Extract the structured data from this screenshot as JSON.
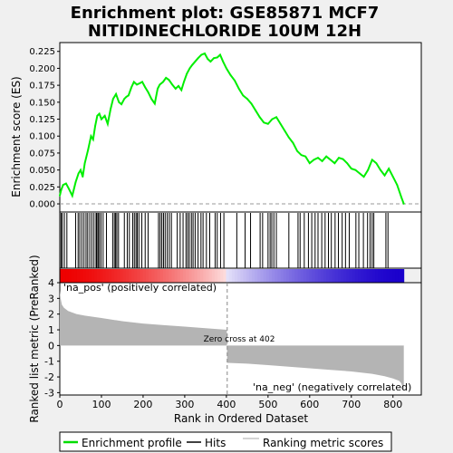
{
  "chart_data": {
    "type": "line",
    "title_line1": "Enrichment plot: GSE85871 MCF7",
    "title_line2": "NITIDINECHLORIDE 10UM 12H",
    "es_panel": {
      "ylabel": "Enrichment score (ES)",
      "ylim": [
        -0.012,
        0.238
      ],
      "yticks": [
        "0.000",
        "0.025",
        "0.050",
        "0.075",
        "0.100",
        "0.125",
        "0.150",
        "0.175",
        "0.200",
        "0.225"
      ],
      "x": [
        0,
        3,
        8,
        15,
        22,
        30,
        38,
        45,
        50,
        55,
        60,
        68,
        75,
        80,
        85,
        90,
        95,
        100,
        108,
        115,
        122,
        128,
        135,
        142,
        148,
        155,
        160,
        165,
        172,
        178,
        185,
        192,
        198,
        205,
        212,
        220,
        228,
        235,
        240,
        248,
        255,
        262,
        270,
        278,
        285,
        292,
        298,
        305,
        312,
        318,
        325,
        332,
        340,
        348,
        355,
        362,
        370,
        378,
        385,
        392,
        400,
        410,
        420,
        430,
        440,
        450,
        460,
        470,
        480,
        490,
        500,
        510,
        520,
        530,
        540,
        550,
        560,
        570,
        580,
        590,
        600,
        610,
        620,
        630,
        640,
        650,
        660,
        670,
        680,
        690,
        700,
        710,
        720,
        730,
        740,
        750,
        760,
        770,
        780,
        790,
        800,
        810,
        820,
        826
      ],
      "es": [
        0.012,
        0.02,
        0.028,
        0.03,
        0.022,
        0.012,
        0.032,
        0.045,
        0.05,
        0.04,
        0.06,
        0.08,
        0.1,
        0.095,
        0.115,
        0.13,
        0.133,
        0.125,
        0.13,
        0.118,
        0.14,
        0.155,
        0.162,
        0.15,
        0.147,
        0.155,
        0.158,
        0.16,
        0.172,
        0.18,
        0.176,
        0.178,
        0.18,
        0.172,
        0.165,
        0.155,
        0.148,
        0.17,
        0.176,
        0.18,
        0.186,
        0.183,
        0.176,
        0.17,
        0.174,
        0.168,
        0.18,
        0.192,
        0.2,
        0.205,
        0.21,
        0.215,
        0.22,
        0.222,
        0.214,
        0.21,
        0.215,
        0.216,
        0.22,
        0.21,
        0.2,
        0.19,
        0.182,
        0.17,
        0.16,
        0.155,
        0.148,
        0.138,
        0.128,
        0.12,
        0.118,
        0.125,
        0.128,
        0.118,
        0.108,
        0.098,
        0.09,
        0.078,
        0.072,
        0.07,
        0.06,
        0.065,
        0.068,
        0.063,
        0.07,
        0.065,
        0.06,
        0.068,
        0.066,
        0.06,
        0.052,
        0.05,
        0.045,
        0.04,
        0.05,
        0.065,
        0.06,
        0.05,
        0.042,
        0.052,
        0.04,
        0.028,
        0.01,
        0.0
      ]
    },
    "hits_panel": {
      "hit_ranks": [
        3,
        6,
        11,
        17,
        38,
        44,
        48,
        53,
        58,
        63,
        67,
        72,
        77,
        82,
        87,
        89,
        92,
        95,
        99,
        104,
        112,
        127,
        131,
        134,
        137,
        141,
        155,
        162,
        167,
        175,
        179,
        183,
        186,
        190,
        197,
        205,
        212,
        237,
        241,
        245,
        249,
        253,
        258,
        263,
        268,
        282,
        289,
        296,
        303,
        307,
        311,
        316,
        320,
        325,
        332,
        339,
        344,
        352,
        360,
        373,
        378,
        386,
        394,
        425,
        445,
        458,
        481,
        487,
        500,
        505,
        509,
        514,
        520,
        550,
        572,
        577,
        587,
        597,
        605,
        613,
        620,
        629,
        637,
        645,
        652,
        661,
        669,
        678,
        686,
        695,
        711,
        718,
        729,
        739,
        745,
        750,
        754,
        783,
        788
      ]
    },
    "metric_panel": {
      "ylabel": "Ranked list metric (PreRanked)",
      "xlabel": "Rank in Ordered Dataset",
      "ylim": [
        -3.15,
        4.0
      ],
      "yticks": [
        "4",
        "3",
        "2",
        "1",
        "0",
        "-1",
        "-2",
        "-3"
      ],
      "xticks": [
        "0",
        "100",
        "200",
        "300",
        "400",
        "500",
        "600",
        "700",
        "800"
      ],
      "xlim": [
        0,
        868
      ],
      "n_ranks": 826,
      "zero_cross_rank": 402,
      "zero_cross_label": "Zero cross at 402",
      "pos_label": "'na_pos' (positively correlated)",
      "neg_label": "'na_neg' (negatively correlated)",
      "metric_x": [
        0,
        2,
        5,
        10,
        20,
        40,
        60,
        100,
        150,
        200,
        250,
        300,
        350,
        401,
        402,
        450,
        500,
        550,
        600,
        650,
        700,
        750,
        780,
        800,
        815,
        820,
        824,
        826
      ],
      "metric_y": [
        3.5,
        3.0,
        2.6,
        2.4,
        2.2,
        2.0,
        1.9,
        1.75,
        1.55,
        1.4,
        1.3,
        1.2,
        1.1,
        1.0,
        -1.1,
        -1.15,
        -1.25,
        -1.35,
        -1.45,
        -1.55,
        -1.65,
        -1.8,
        -1.95,
        -2.1,
        -2.25,
        -2.4,
        -2.7,
        -2.9
      ]
    },
    "legend": [
      {
        "label": "Enrichment profile",
        "color": "#00dd00"
      },
      {
        "label": "Hits",
        "color": "#000000"
      },
      {
        "label": "Ranking metric scores",
        "color": "#bbbbbb"
      }
    ],
    "colors": {
      "es_line": "#00ee00",
      "bar_red": "#ee0000",
      "bar_blue": "#1a00cc",
      "bar_white": "#ffffff",
      "metric_fill": "#b4b4b4",
      "zero_line": "#888888",
      "pos_text": "#cc0000",
      "neg_text": "#2244cc"
    }
  }
}
